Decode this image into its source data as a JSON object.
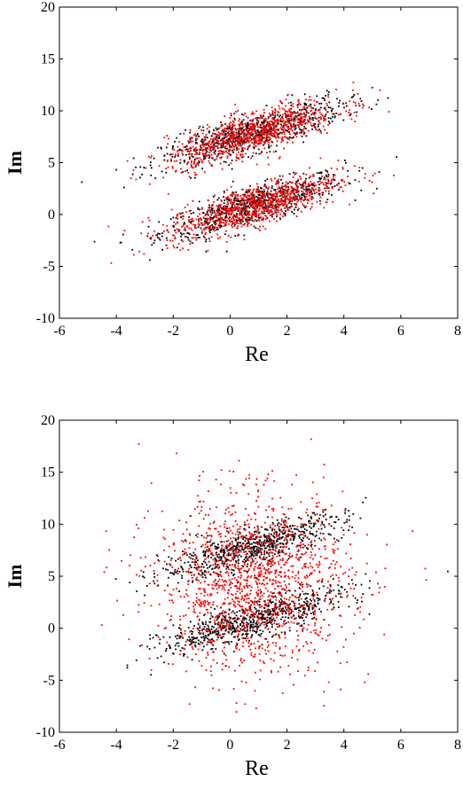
{
  "chart_data": [
    {
      "type": "scatter",
      "xlabel": "Re",
      "ylabel": "Im",
      "xlim": [
        -6,
        8
      ],
      "ylim": [
        -10,
        20
      ],
      "xticks": [
        -6,
        -4,
        -2,
        0,
        2,
        4,
        6,
        8
      ],
      "yticks": [
        -10,
        -5,
        0,
        5,
        10,
        15,
        20
      ],
      "grid": false,
      "series": [
        {
          "color": "#000000",
          "clusters": [
            {
              "center": [
                0.8,
                0.8
              ],
              "trend_slope": 0.8,
              "spread_x": 1.6,
              "spread_y": 0.9,
              "count": 700
            },
            {
              "center": [
                0.8,
                7.8
              ],
              "trend_slope": 0.8,
              "spread_x": 1.6,
              "spread_y": 0.9,
              "count": 700
            }
          ]
        },
        {
          "color": "#ff0000",
          "clusters": [
            {
              "center": [
                0.8,
                0.8
              ],
              "trend_slope": 0.8,
              "spread_x": 1.5,
              "spread_y": 1.0,
              "count": 900
            },
            {
              "center": [
                0.8,
                7.8
              ],
              "trend_slope": 0.8,
              "spread_x": 1.5,
              "spread_y": 1.0,
              "count": 900
            }
          ]
        }
      ]
    },
    {
      "type": "scatter",
      "xlabel": "Re",
      "ylabel": "Im",
      "xlim": [
        -6,
        8
      ],
      "ylim": [
        -10,
        20
      ],
      "xticks": [
        -6,
        -4,
        -2,
        0,
        2,
        4,
        6,
        8
      ],
      "yticks": [
        -10,
        -5,
        0,
        5,
        10,
        15,
        20
      ],
      "grid": false,
      "series": [
        {
          "color": "#000000",
          "clusters": [
            {
              "center": [
                0.8,
                0.8
              ],
              "trend_slope": 0.8,
              "spread_x": 1.6,
              "spread_y": 0.9,
              "count": 700
            },
            {
              "center": [
                0.8,
                7.8
              ],
              "trend_slope": 0.8,
              "spread_x": 1.6,
              "spread_y": 0.9,
              "count": 700
            }
          ]
        },
        {
          "color": "#ff0000",
          "clusters": [
            {
              "center": [
                0.8,
                4.3
              ],
              "trend_slope": 0.0,
              "spread_x": 1.7,
              "spread_y": 4.2,
              "count": 1500
            }
          ]
        }
      ]
    }
  ]
}
